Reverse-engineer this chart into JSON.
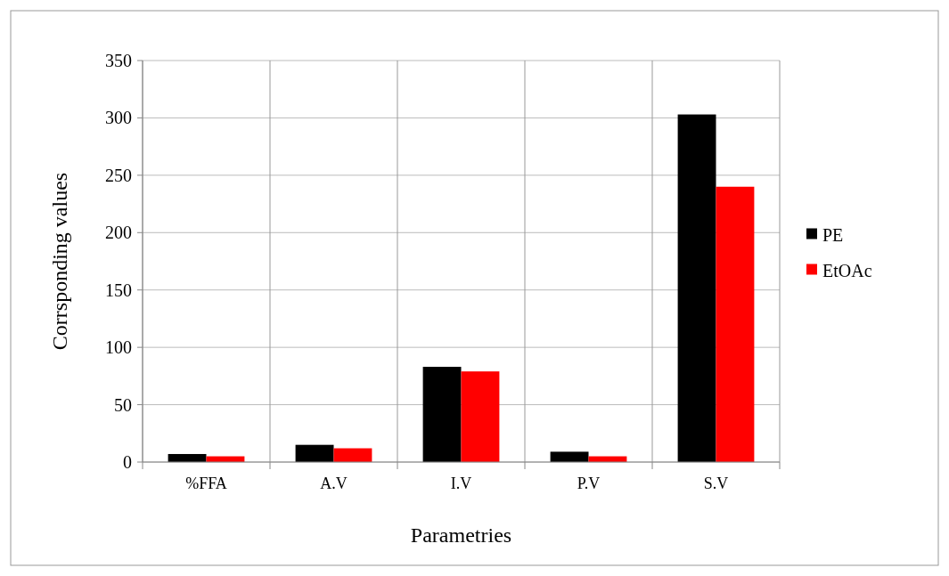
{
  "chart_data": {
    "type": "bar",
    "xlabel": "Parametries",
    "ylabel": "Corrsponding values",
    "categories": [
      "%FFA",
      "A.V",
      "I.V",
      "P.V",
      "S.V"
    ],
    "series": [
      {
        "name": "PE",
        "color": "#000000",
        "values": [
          7,
          15,
          83,
          9,
          303
        ]
      },
      {
        "name": "EtOAc",
        "color": "#ff0000",
        "values": [
          5,
          12,
          79,
          5,
          240
        ]
      }
    ],
    "ylim": [
      0,
      350
    ],
    "yticks": [
      0,
      50,
      100,
      150,
      200,
      250,
      300,
      350
    ],
    "grid": true,
    "legend": "right"
  }
}
